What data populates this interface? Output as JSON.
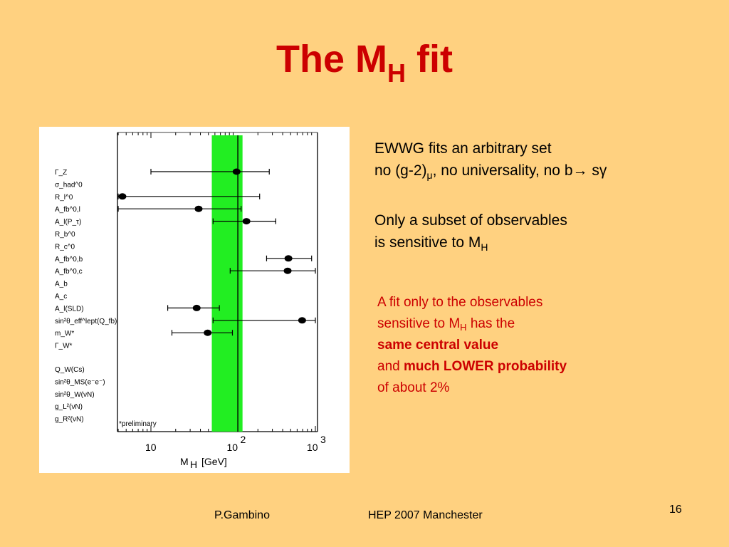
{
  "slide": {
    "title_main": "The M",
    "title_sub": "H",
    "title_tail": " fit",
    "block1": {
      "line1": "EWWG fits an arbitrary set",
      "line2_a": "no (g-2)",
      "line2_sub": "μ",
      "line2_b": ", no universality, no b",
      "line2_arrow": "→",
      "line2_c": " sγ"
    },
    "block2": {
      "line1": "Only a subset of observables",
      "line2_a": "is sensitive to M",
      "line2_sub": "H"
    },
    "red_block": {
      "line1": "A fit only to the observables",
      "line2_a": "sensitive to M",
      "line2_sub": "H",
      "line2_b": " has the",
      "line3": "same central value",
      "line4_a": "and ",
      "line4_b": "much LOWER probability",
      "line5": "of about 2%"
    },
    "footer": {
      "author": "P.Gambino",
      "event": "HEP 2007 Manchester",
      "page": "16"
    }
  },
  "chart_data": {
    "type": "scatter",
    "orientation": "horizontal error bars",
    "x_scale": "log",
    "xlabel": "M_H [GeV]",
    "xlim": [
      4,
      1000
    ],
    "x_ticks": [
      "10",
      "10^2",
      "10^3"
    ],
    "band": {
      "from": 55,
      "to": 130,
      "color": "#22EE22"
    },
    "central_line": 114,
    "annotation": "*preliminary",
    "rows": [
      {
        "label": "Γ_Z",
        "value": 110,
        "err_lo": 10,
        "err_hi": 275
      },
      {
        "label": "σ_had^0",
        "value": null
      },
      {
        "label": "R_l^0",
        "value": 4.5,
        "err_lo": 4,
        "err_hi": 210
      },
      {
        "label": "A_fb^0,l",
        "value": 38,
        "err_lo": 4,
        "err_hi": 125
      },
      {
        "label": "A_l(P_τ)",
        "value": 145,
        "err_lo": 57,
        "err_hi": 330
      },
      {
        "label": "R_b^0",
        "value": null
      },
      {
        "label": "R_c^0",
        "value": null
      },
      {
        "label": "A_fb^0,b",
        "value": 470,
        "err_lo": 255,
        "err_hi": 900
      },
      {
        "label": "A_fb^0,c",
        "value": 460,
        "err_lo": 92,
        "err_hi": 1000
      },
      {
        "label": "A_b",
        "value": null
      },
      {
        "label": "A_c",
        "value": null
      },
      {
        "label": "A_l(SLD)",
        "value": 36,
        "err_lo": 16,
        "err_hi": 68
      },
      {
        "label": "sin²θ_eff^lept(Q_fb)",
        "value": 690,
        "err_lo": 57,
        "err_hi": 1000
      },
      {
        "label": "m_W*",
        "value": 49,
        "err_lo": 18,
        "err_hi": 98
      },
      {
        "label": "Γ_W*",
        "value": null
      },
      {
        "label": "Q_W(Cs)",
        "value": null
      },
      {
        "label": "sin²θ_MS(e⁻e⁻)",
        "value": null
      },
      {
        "label": "sin²θ_W(νN)",
        "value": null
      },
      {
        "label": "g_L²(νN)",
        "value": null
      },
      {
        "label": "g_R²(νN)",
        "value": null
      }
    ]
  }
}
